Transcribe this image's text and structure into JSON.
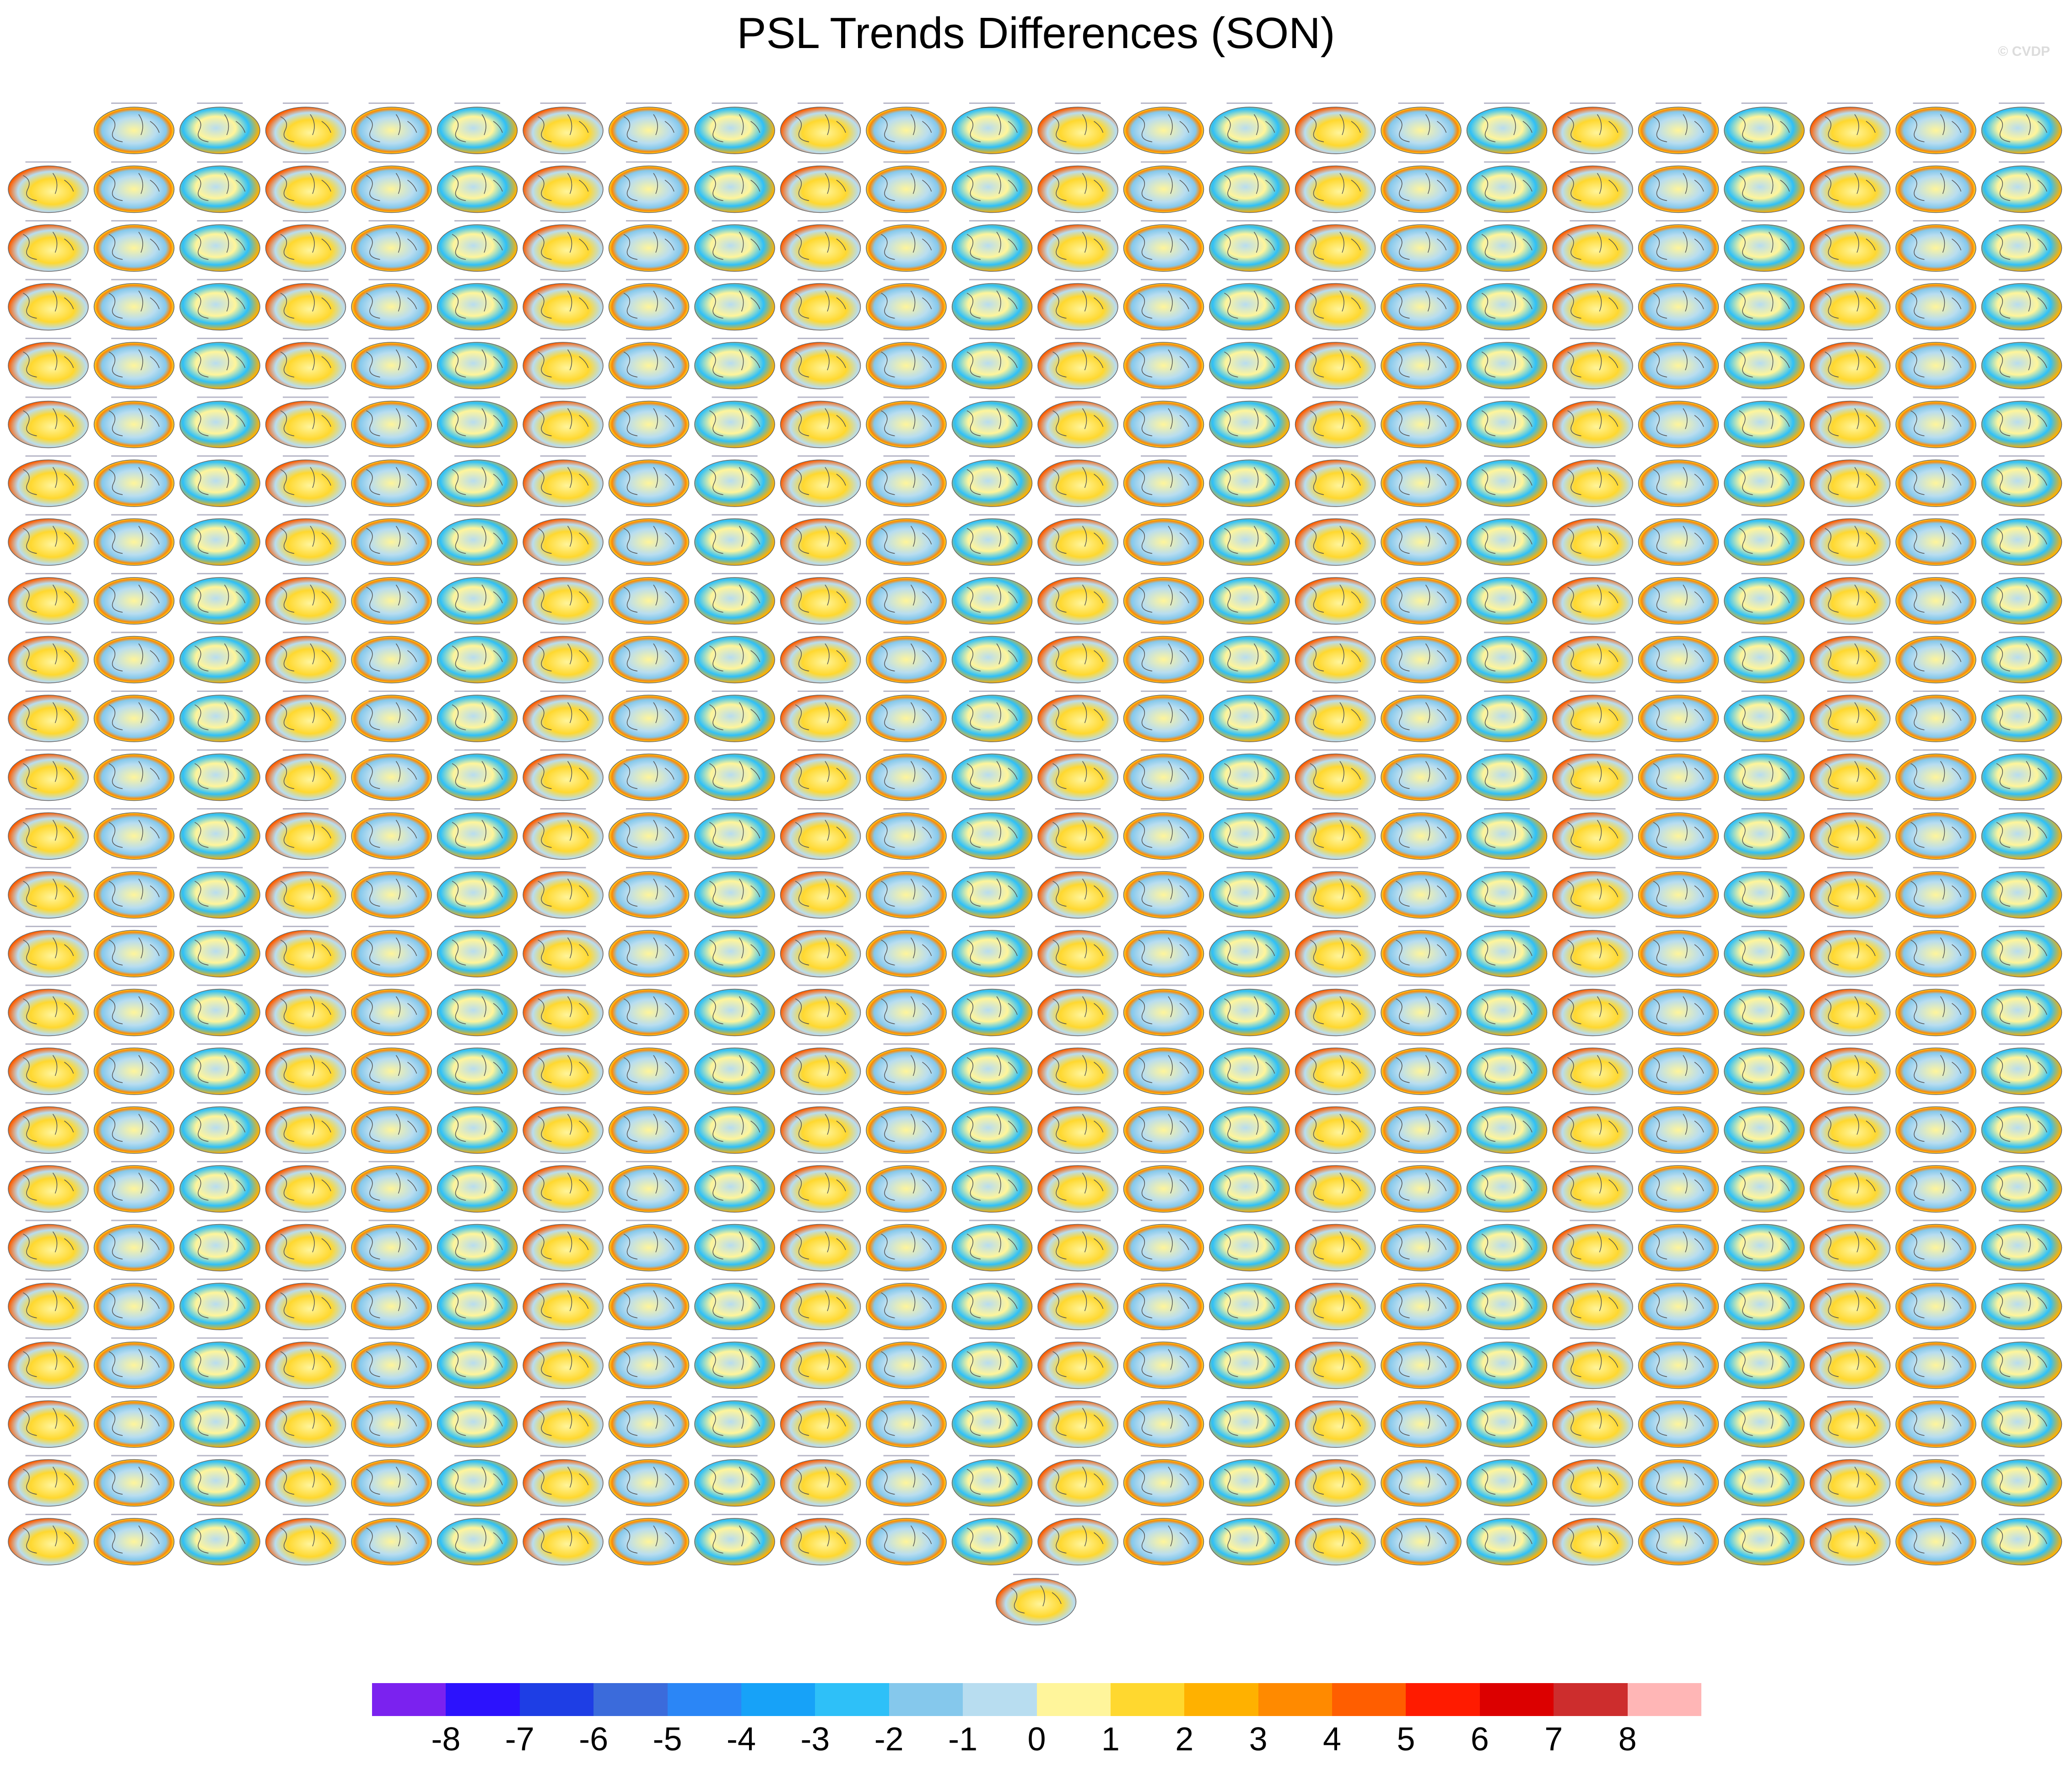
{
  "title": "PSL Trends Differences (SON)",
  "credit": "© CVDP",
  "chart_data": {
    "type": "heatmap",
    "title": "PSL Trends Differences (SON)",
    "panel_layout": {
      "rows": 25,
      "cols": 24,
      "first_row_panels": 23,
      "last_row_centered_panels": 1,
      "panel_shape": "global ellipse map"
    },
    "colorbar": {
      "colors": [
        "#7b22ef",
        "#2c12fd",
        "#1e3ee5",
        "#3b6bdb",
        "#2b86f6",
        "#17a2f8",
        "#2ec0f8",
        "#85c8ec",
        "#b8ddf0",
        "#fff59b",
        "#ffd82f",
        "#ffb100",
        "#ff8a00",
        "#ff5e00",
        "#ff1b00",
        "#dc0000",
        "#cd2d2d",
        "#ffb6b6"
      ],
      "tick_labels": [
        "-8",
        "-7",
        "-6",
        "-5",
        "-4",
        "-3",
        "-2",
        "-1",
        "0",
        "1",
        "2",
        "3",
        "4",
        "5",
        "6",
        "7",
        "8"
      ],
      "range": [
        -8,
        8
      ]
    }
  }
}
